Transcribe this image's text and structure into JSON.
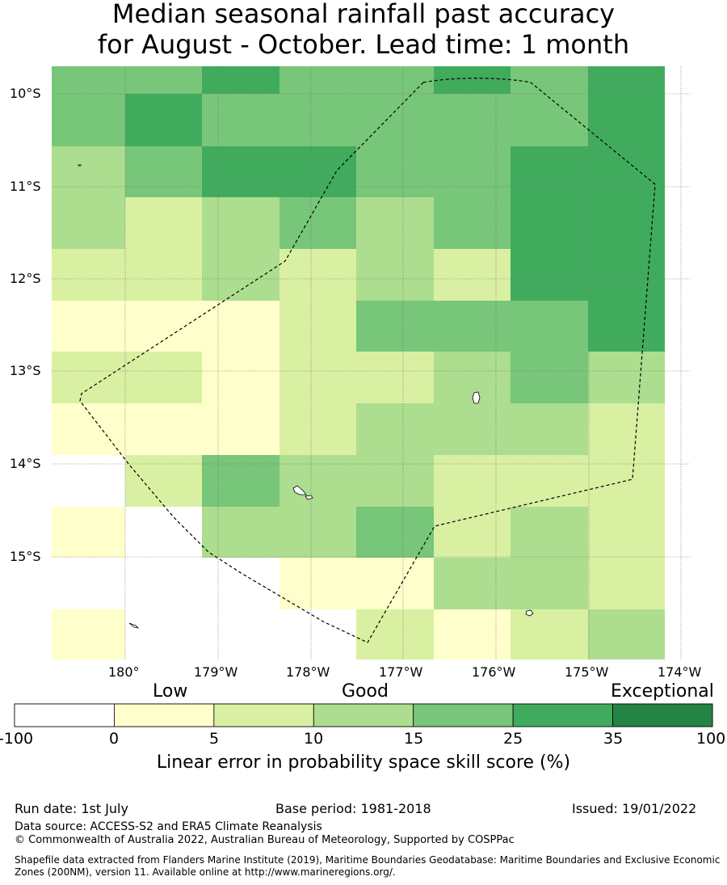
{
  "title": {
    "line1": "Median seasonal rainfall past accuracy",
    "line2": "for August - October. Lead time: 1 month"
  },
  "map": {
    "lat_labels": [
      "10°S",
      "11°S",
      "12°S",
      "13°S",
      "14°S",
      "15°S"
    ],
    "lon_labels": [
      "180°",
      "179°W",
      "178°W",
      "177°W",
      "176°W",
      "175°W",
      "174°W"
    ],
    "grid_columns": 8,
    "grid_rows": 12,
    "cells": [
      [
        4,
        4,
        5,
        4,
        4,
        5,
        4,
        5
      ],
      [
        4,
        5,
        4,
        4,
        4,
        4,
        4,
        5
      ],
      [
        3,
        4,
        5,
        5,
        4,
        4,
        5,
        5
      ],
      [
        3,
        2,
        3,
        4,
        3,
        4,
        5,
        5
      ],
      [
        2,
        2,
        3,
        2,
        3,
        2,
        5,
        5
      ],
      [
        1,
        1,
        1,
        2,
        4,
        4,
        4,
        5
      ],
      [
        2,
        2,
        1,
        2,
        2,
        3,
        4,
        3
      ],
      [
        1,
        1,
        1,
        2,
        3,
        3,
        3,
        2
      ],
      [
        0,
        2,
        4,
        3,
        3,
        2,
        2,
        2
      ],
      [
        1,
        0,
        3,
        3,
        4,
        2,
        3,
        2
      ],
      [
        0,
        0,
        0,
        1,
        1,
        3,
        3,
        2
      ],
      [
        1,
        0,
        0,
        0,
        2,
        1,
        2,
        3
      ]
    ]
  },
  "legend": {
    "categories": [
      "Low",
      "Good",
      "Exceptional"
    ],
    "ticks": [
      "-100",
      "0",
      "5",
      "10",
      "15",
      "25",
      "35",
      "100"
    ],
    "colors": [
      "#ffffff",
      "#ffffcc",
      "#d9f0a3",
      "#addd8e",
      "#78c679",
      "#41ab5d",
      "#238443"
    ],
    "label": "Linear error in probability space skill score (%)"
  },
  "footer": {
    "run_date": "Run date: 1st July",
    "base_period": "Base period: 1981-2018",
    "issued": "Issued: 19/01/2022",
    "data_source": "Data source: ACCESS-S2 and ERA5 Climate Reanalysis",
    "copyright": "© Commonwealth of Australia 2022, Australian Bureau of Meteorology, Supported by COSPPac",
    "shapefile": "Shapefile data extracted from Flanders Marine Institute (2019), Maritime Boundaries Geodatabase: Maritime Boundaries and Exclusive Economic Zones (200NM), version 11. Available online at http://www.marineregions.org/."
  }
}
